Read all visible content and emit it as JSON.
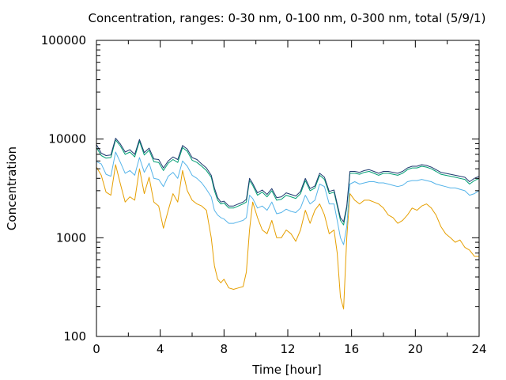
{
  "chart_data": {
    "type": "line",
    "title": "Concentration, ranges: 0-30 nm, 0-100 nm, 0-300 nm, total (5/9/1)",
    "xlabel": "Time [hour]",
    "ylabel": "Concentration",
    "xlim": [
      0,
      24
    ],
    "ylim": [
      100,
      100000
    ],
    "yscale": "log",
    "grid": false,
    "xticks": [
      0,
      4,
      8,
      12,
      16,
      20,
      24
    ],
    "xtick_labels": [
      "0",
      "4",
      "8",
      "12",
      "16",
      "20",
      "24"
    ],
    "yticks": [
      100,
      1000,
      10000,
      100000
    ],
    "ytick_labels": [
      "100",
      "1000",
      "10000",
      "100000"
    ],
    "series": [
      {
        "color": "#e69f00",
        "x": [
          0,
          0.3,
          0.6,
          0.9,
          1.2,
          1.5,
          1.8,
          2.1,
          2.4,
          2.7,
          3.0,
          3.3,
          3.6,
          3.9,
          4.2,
          4.5,
          4.8,
          5.1,
          5.4,
          5.7,
          6.0,
          6.3,
          6.6,
          6.9,
          7.2,
          7.4,
          7.6,
          7.8,
          8.0,
          8.3,
          8.6,
          8.9,
          9.2,
          9.4,
          9.6,
          9.8,
          10.1,
          10.4,
          10.7,
          11.0,
          11.3,
          11.6,
          11.9,
          12.2,
          12.5,
          12.8,
          13.1,
          13.4,
          13.7,
          14.0,
          14.3,
          14.6,
          14.9,
          15.1,
          15.3,
          15.5,
          15.7,
          15.9,
          16.2,
          16.5,
          16.8,
          17.1,
          17.4,
          17.7,
          18.0,
          18.3,
          18.6,
          18.9,
          19.2,
          19.5,
          19.8,
          20.1,
          20.4,
          20.7,
          21.0,
          21.3,
          21.6,
          21.9,
          22.2,
          22.5,
          22.8,
          23.1,
          23.4,
          23.7,
          24.0
        ],
        "y": [
          5200,
          4300,
          2900,
          2700,
          5500,
          3500,
          2300,
          2600,
          2400,
          5000,
          2800,
          4100,
          2300,
          2100,
          1250,
          1900,
          2800,
          2300,
          4800,
          3000,
          2400,
          2200,
          2100,
          1900,
          1000,
          520,
          380,
          350,
          380,
          310,
          300,
          310,
          320,
          450,
          1200,
          2300,
          1600,
          1200,
          1100,
          1500,
          1000,
          1000,
          1200,
          1100,
          920,
          1200,
          1900,
          1400,
          1900,
          2200,
          1700,
          1100,
          1200,
          700,
          250,
          190,
          1000,
          2800,
          2400,
          2200,
          2400,
          2400,
          2300,
          2200,
          2000,
          1700,
          1600,
          1400,
          1500,
          1700,
          2000,
          1900,
          2100,
          2200,
          2000,
          1700,
          1300,
          1100,
          1000,
          900,
          950,
          800,
          750,
          650,
          650
        ]
      },
      {
        "color": "#56b4e9",
        "x": [
          0,
          0.3,
          0.6,
          0.9,
          1.2,
          1.5,
          1.8,
          2.1,
          2.4,
          2.7,
          3.0,
          3.3,
          3.6,
          3.9,
          4.2,
          4.5,
          4.8,
          5.1,
          5.4,
          5.7,
          6.0,
          6.3,
          6.6,
          6.9,
          7.2,
          7.4,
          7.6,
          7.8,
          8.0,
          8.3,
          8.6,
          8.9,
          9.2,
          9.4,
          9.6,
          9.8,
          10.1,
          10.4,
          10.7,
          11.0,
          11.3,
          11.6,
          11.9,
          12.2,
          12.5,
          12.8,
          13.1,
          13.4,
          13.7,
          14.0,
          14.3,
          14.6,
          14.9,
          15.1,
          15.3,
          15.5,
          15.7,
          15.9,
          16.2,
          16.5,
          16.8,
          17.1,
          17.4,
          17.7,
          18.0,
          18.3,
          18.6,
          18.9,
          19.2,
          19.5,
          19.8,
          20.1,
          20.4,
          20.7,
          21.0,
          21.3,
          21.6,
          21.9,
          22.2,
          22.5,
          22.8,
          23.1,
          23.4,
          23.7,
          24.0
        ],
        "y": [
          5900,
          5600,
          4400,
          4200,
          7400,
          5800,
          4500,
          4800,
          4300,
          6500,
          4600,
          5700,
          4000,
          3900,
          3300,
          4200,
          4600,
          4000,
          6000,
          5300,
          4300,
          4000,
          3600,
          3100,
          2600,
          1900,
          1700,
          1600,
          1550,
          1400,
          1400,
          1450,
          1500,
          1600,
          2700,
          2500,
          2000,
          2100,
          1900,
          2300,
          1750,
          1800,
          1950,
          1850,
          1800,
          2000,
          2700,
          2200,
          2400,
          3500,
          3300,
          2200,
          2200,
          1500,
          1000,
          850,
          1300,
          3500,
          3700,
          3500,
          3600,
          3700,
          3700,
          3600,
          3600,
          3500,
          3400,
          3300,
          3400,
          3700,
          3800,
          3800,
          3900,
          3800,
          3700,
          3500,
          3400,
          3300,
          3200,
          3200,
          3100,
          3000,
          2700,
          2800,
          3000
        ]
      },
      {
        "color": "#009e73",
        "x": [
          0,
          0.3,
          0.6,
          0.9,
          1.2,
          1.5,
          1.8,
          2.1,
          2.4,
          2.7,
          3.0,
          3.3,
          3.6,
          3.9,
          4.2,
          4.5,
          4.8,
          5.1,
          5.4,
          5.7,
          6.0,
          6.3,
          6.6,
          6.9,
          7.2,
          7.4,
          7.6,
          7.8,
          8.0,
          8.3,
          8.6,
          8.9,
          9.2,
          9.4,
          9.6,
          9.8,
          10.1,
          10.4,
          10.7,
          11.0,
          11.3,
          11.6,
          11.9,
          12.2,
          12.5,
          12.8,
          13.1,
          13.4,
          13.7,
          14.0,
          14.3,
          14.6,
          14.9,
          15.1,
          15.3,
          15.5,
          15.7,
          15.9,
          16.2,
          16.5,
          16.8,
          17.1,
          17.4,
          17.7,
          18.0,
          18.3,
          18.6,
          18.9,
          19.2,
          19.5,
          19.8,
          20.1,
          20.4,
          20.7,
          21.0,
          21.3,
          21.6,
          21.9,
          22.2,
          22.5,
          22.8,
          23.1,
          23.4,
          23.7,
          24.0
        ],
        "y": [
          8200,
          6800,
          6400,
          6500,
          9800,
          8500,
          7000,
          7400,
          6600,
          9500,
          6900,
          7700,
          5900,
          5800,
          4800,
          5700,
          6200,
          5800,
          8200,
          7500,
          6100,
          5800,
          5300,
          4800,
          4100,
          3000,
          2400,
          2200,
          2250,
          2000,
          2000,
          2100,
          2200,
          2300,
          3800,
          3400,
          2700,
          2900,
          2600,
          3000,
          2400,
          2450,
          2700,
          2600,
          2500,
          2800,
          3800,
          3000,
          3200,
          4300,
          3900,
          2800,
          2900,
          2100,
          1500,
          1350,
          2000,
          4500,
          4500,
          4400,
          4600,
          4700,
          4500,
          4300,
          4500,
          4500,
          4400,
          4300,
          4500,
          4900,
          5100,
          5100,
          5300,
          5200,
          5000,
          4700,
          4400,
          4300,
          4200,
          4100,
          4000,
          3900,
          3500,
          3800,
          4000
        ]
      },
      {
        "color": "#1f3a70",
        "x": [
          0,
          0.3,
          0.6,
          0.9,
          1.2,
          1.5,
          1.8,
          2.1,
          2.4,
          2.7,
          3.0,
          3.3,
          3.6,
          3.9,
          4.2,
          4.5,
          4.8,
          5.1,
          5.4,
          5.7,
          6.0,
          6.3,
          6.6,
          6.9,
          7.2,
          7.4,
          7.6,
          7.8,
          8.0,
          8.3,
          8.6,
          8.9,
          9.2,
          9.4,
          9.6,
          9.8,
          10.1,
          10.4,
          10.7,
          11.0,
          11.3,
          11.6,
          11.9,
          12.2,
          12.5,
          12.8,
          13.1,
          13.4,
          13.7,
          14.0,
          14.3,
          14.6,
          14.9,
          15.1,
          15.3,
          15.5,
          15.7,
          15.9,
          16.2,
          16.5,
          16.8,
          17.1,
          17.4,
          17.7,
          18.0,
          18.3,
          18.6,
          18.9,
          19.2,
          19.5,
          19.8,
          20.1,
          20.4,
          20.7,
          21.0,
          21.3,
          21.6,
          21.9,
          22.2,
          22.5,
          22.8,
          23.1,
          23.4,
          23.7,
          24.0
        ],
        "y": [
          8800,
          7200,
          6800,
          6900,
          10200,
          8900,
          7400,
          7800,
          7000,
          9900,
          7300,
          8100,
          6300,
          6200,
          5100,
          6000,
          6600,
          6200,
          8600,
          7900,
          6500,
          6200,
          5600,
          5100,
          4300,
          3200,
          2550,
          2300,
          2350,
          2100,
          2100,
          2200,
          2300,
          2450,
          4000,
          3550,
          2850,
          3050,
          2750,
          3150,
          2550,
          2600,
          2850,
          2750,
          2650,
          2950,
          4000,
          3150,
          3350,
          4500,
          4100,
          2950,
          3050,
          2200,
          1600,
          1450,
          2100,
          4700,
          4700,
          4600,
          4800,
          4900,
          4700,
          4500,
          4700,
          4700,
          4600,
          4500,
          4700,
          5100,
          5300,
          5300,
          5500,
          5400,
          5200,
          4900,
          4600,
          4500,
          4400,
          4300,
          4200,
          4100,
          3700,
          4000,
          4200
        ]
      }
    ]
  }
}
